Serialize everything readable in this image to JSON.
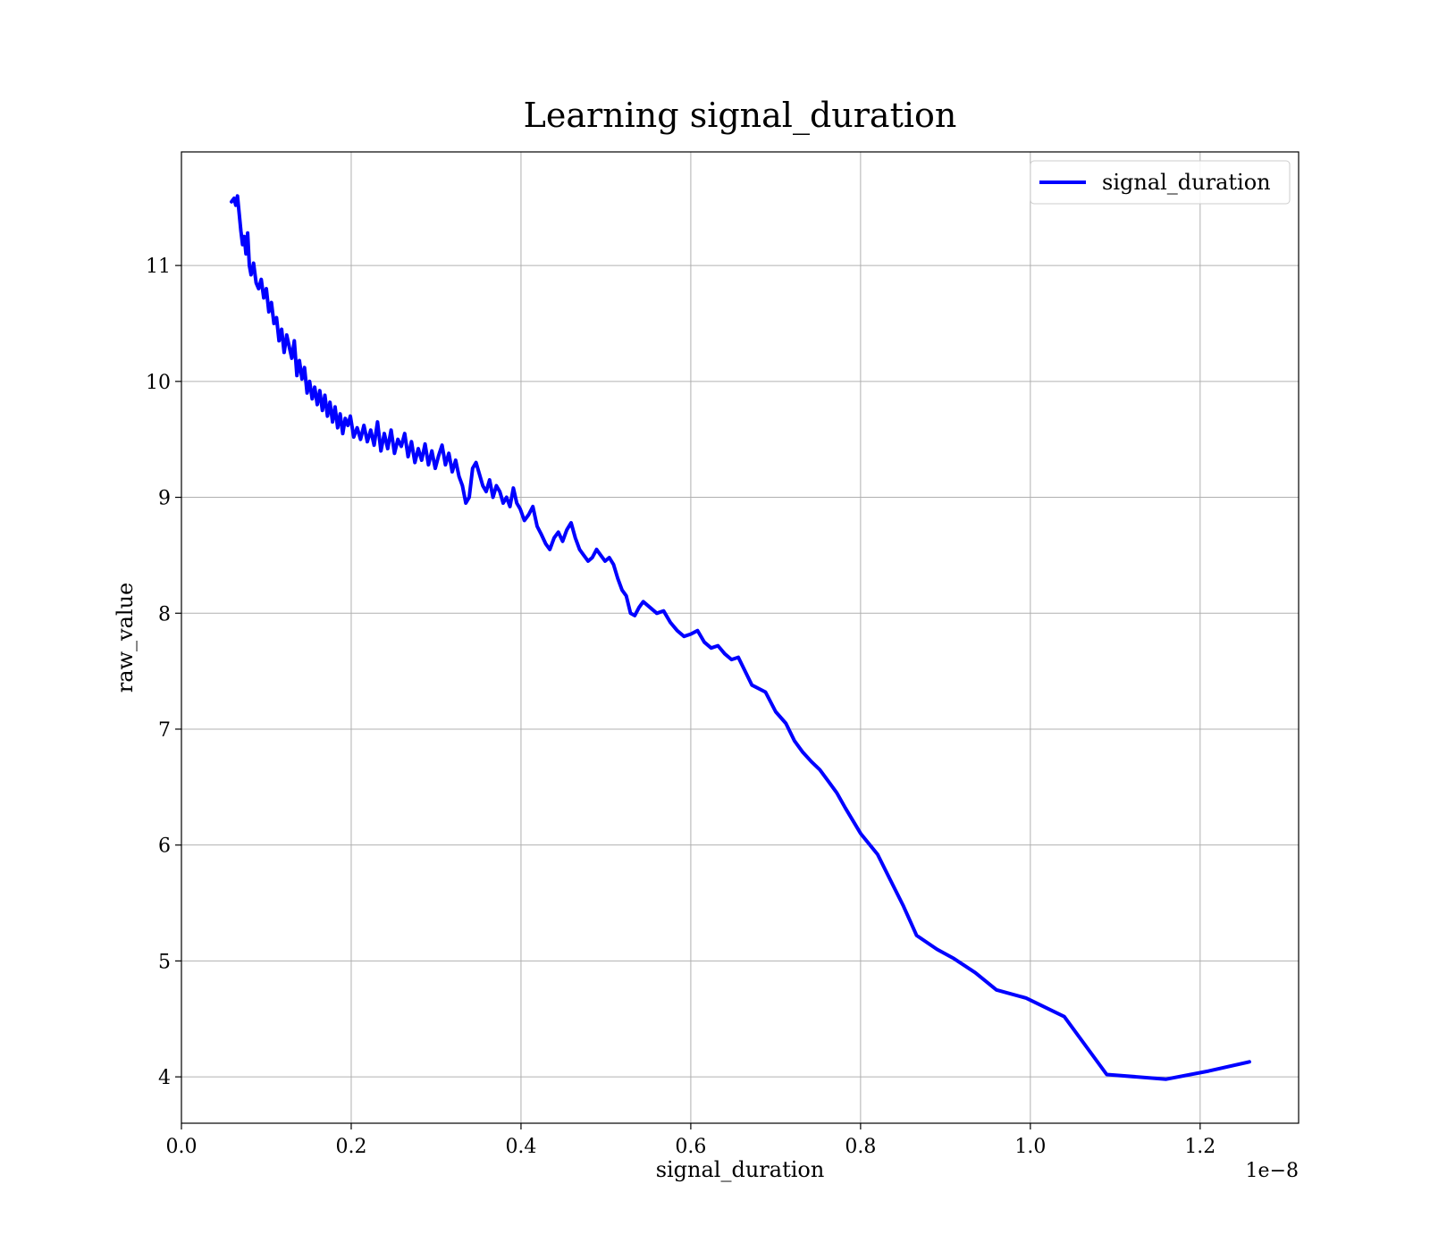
{
  "chart_data": {
    "type": "line",
    "title": "Learning signal_duration",
    "xlabel": "signal_duration",
    "ylabel": "raw_value",
    "x_offset_label": "1e−8",
    "xlim": [
      0.0,
      1.316
    ],
    "ylim": [
      3.6,
      11.98
    ],
    "x_ticks": [
      0.0,
      0.2,
      0.4,
      0.6,
      0.8,
      1.0,
      1.2
    ],
    "x_tick_labels": [
      "0.0",
      "0.2",
      "0.4",
      "0.6",
      "0.8",
      "1.0",
      "1.2"
    ],
    "y_ticks": [
      4,
      5,
      6,
      7,
      8,
      9,
      10,
      11
    ],
    "y_tick_labels": [
      "4",
      "5",
      "6",
      "7",
      "8",
      "9",
      "10",
      "11"
    ],
    "grid": true,
    "legend_position": "upper right",
    "series": [
      {
        "name": "signal_duration",
        "color": "#0000ff",
        "x": [
          0.059,
          0.062,
          0.064,
          0.066,
          0.068,
          0.07,
          0.072,
          0.074,
          0.076,
          0.078,
          0.08,
          0.082,
          0.085,
          0.088,
          0.091,
          0.094,
          0.097,
          0.1,
          0.103,
          0.106,
          0.109,
          0.112,
          0.115,
          0.118,
          0.121,
          0.124,
          0.127,
          0.13,
          0.133,
          0.136,
          0.139,
          0.142,
          0.145,
          0.148,
          0.151,
          0.154,
          0.157,
          0.16,
          0.163,
          0.166,
          0.169,
          0.172,
          0.175,
          0.178,
          0.181,
          0.184,
          0.187,
          0.19,
          0.193,
          0.196,
          0.199,
          0.203,
          0.207,
          0.211,
          0.215,
          0.219,
          0.223,
          0.227,
          0.231,
          0.235,
          0.239,
          0.243,
          0.247,
          0.251,
          0.255,
          0.259,
          0.263,
          0.267,
          0.271,
          0.275,
          0.279,
          0.283,
          0.287,
          0.291,
          0.295,
          0.299,
          0.303,
          0.307,
          0.311,
          0.315,
          0.319,
          0.323,
          0.327,
          0.331,
          0.335,
          0.339,
          0.343,
          0.347,
          0.351,
          0.355,
          0.359,
          0.363,
          0.367,
          0.371,
          0.375,
          0.379,
          0.383,
          0.387,
          0.391,
          0.395,
          0.399,
          0.404,
          0.409,
          0.414,
          0.419,
          0.424,
          0.429,
          0.434,
          0.439,
          0.444,
          0.449,
          0.454,
          0.459,
          0.464,
          0.469,
          0.474,
          0.479,
          0.484,
          0.489,
          0.494,
          0.499,
          0.504,
          0.509,
          0.514,
          0.519,
          0.524,
          0.529,
          0.534,
          0.539,
          0.544,
          0.552,
          0.56,
          0.568,
          0.576,
          0.584,
          0.592,
          0.6,
          0.608,
          0.616,
          0.624,
          0.632,
          0.64,
          0.648,
          0.656,
          0.672,
          0.688,
          0.7,
          0.712,
          0.722,
          0.732,
          0.742,
          0.752,
          0.762,
          0.772,
          0.782,
          0.8,
          0.82,
          0.835,
          0.85,
          0.866,
          0.89,
          0.91,
          0.935,
          0.96,
          0.995,
          1.04,
          1.09,
          1.16,
          1.21,
          1.258
        ],
        "y": [
          11.55,
          11.58,
          11.52,
          11.6,
          11.45,
          11.3,
          11.18,
          11.25,
          11.1,
          11.28,
          11.0,
          10.92,
          11.02,
          10.85,
          10.8,
          10.88,
          10.72,
          10.8,
          10.6,
          10.68,
          10.5,
          10.55,
          10.35,
          10.45,
          10.25,
          10.4,
          10.3,
          10.2,
          10.35,
          10.05,
          10.18,
          10.02,
          10.12,
          9.9,
          10.0,
          9.85,
          9.95,
          9.8,
          9.92,
          9.75,
          9.88,
          9.7,
          9.82,
          9.65,
          9.78,
          9.6,
          9.72,
          9.55,
          9.68,
          9.62,
          9.7,
          9.52,
          9.6,
          9.5,
          9.62,
          9.48,
          9.58,
          9.45,
          9.65,
          9.4,
          9.55,
          9.42,
          9.58,
          9.38,
          9.5,
          9.44,
          9.55,
          9.35,
          9.48,
          9.3,
          9.42,
          9.32,
          9.46,
          9.28,
          9.4,
          9.25,
          9.36,
          9.45,
          9.28,
          9.38,
          9.22,
          9.32,
          9.18,
          9.1,
          8.95,
          9.0,
          9.25,
          9.3,
          9.2,
          9.1,
          9.05,
          9.15,
          9.0,
          9.1,
          9.05,
          8.95,
          9.0,
          8.92,
          9.08,
          8.95,
          8.9,
          8.8,
          8.85,
          8.92,
          8.75,
          8.68,
          8.6,
          8.55,
          8.65,
          8.7,
          8.62,
          8.72,
          8.78,
          8.65,
          8.55,
          8.5,
          8.45,
          8.48,
          8.55,
          8.5,
          8.45,
          8.48,
          8.42,
          8.3,
          8.2,
          8.15,
          8.0,
          7.98,
          8.05,
          8.1,
          8.05,
          8.0,
          8.02,
          7.92,
          7.85,
          7.8,
          7.82,
          7.85,
          7.75,
          7.7,
          7.72,
          7.65,
          7.6,
          7.62,
          7.38,
          7.32,
          7.15,
          7.05,
          6.9,
          6.8,
          6.72,
          6.65,
          6.55,
          6.45,
          6.32,
          6.1,
          5.92,
          5.7,
          5.48,
          5.22,
          5.1,
          5.02,
          4.9,
          4.75,
          4.68,
          4.52,
          4.02,
          3.98,
          4.05,
          4.13
        ]
      }
    ]
  }
}
